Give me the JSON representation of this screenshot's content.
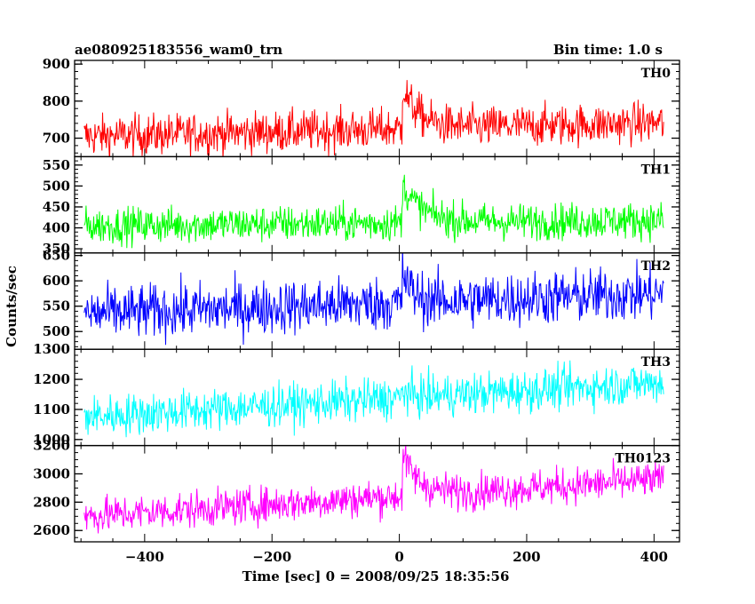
{
  "chart_data": {
    "type": "line",
    "title": "ae080925183556_wam0_trn",
    "bin_time_label": "Bin time: 1.0 s",
    "xlabel": "Time [sec] 0 = 2008/09/25 18:35:56",
    "ylabel": "Counts/sec",
    "xlim": [
      -510,
      440
    ],
    "x_ticks": [
      -400,
      -200,
      0,
      200,
      400
    ],
    "x_minor_step": 50,
    "burst_time": 5,
    "panels": [
      {
        "name": "TH0",
        "color": "#ff0000",
        "ylim": [
          650,
          910
        ],
        "y_ticks": [
          700,
          800,
          900
        ],
        "y_minor_step": 20,
        "x_start": -495,
        "x_end": 415,
        "baseline_start": 705,
        "baseline_end": 742,
        "noise": 28,
        "peak": 895,
        "tail_tau": 25
      },
      {
        "name": "TH1",
        "color": "#00ff00",
        "ylim": [
          340,
          570
        ],
        "y_ticks": [
          350,
          400,
          450,
          500,
          550
        ],
        "y_minor_step": 10,
        "x_start": -495,
        "x_end": 415,
        "baseline_start": 405,
        "baseline_end": 418,
        "noise": 22,
        "peak": 560,
        "tail_tau": 30
      },
      {
        "name": "TH2",
        "color": "#0000ff",
        "ylim": [
          465,
          655
        ],
        "y_ticks": [
          500,
          550,
          600,
          650
        ],
        "y_minor_step": 10,
        "x_start": -495,
        "x_end": 415,
        "baseline_start": 535,
        "baseline_end": 575,
        "noise": 27,
        "peak": 640,
        "tail_tau": 15
      },
      {
        "name": "TH3",
        "color": "#00ffff",
        "ylim": [
          980,
          1300
        ],
        "y_ticks": [
          1000,
          1100,
          1200,
          1300
        ],
        "y_minor_step": 20,
        "x_start": -495,
        "x_end": 415,
        "baseline_start": 1075,
        "baseline_end": 1190,
        "noise": 35,
        "peak": 1130,
        "tail_tau": 10
      },
      {
        "name": "TH0123",
        "color": "#ff00ff",
        "ylim": [
          2520,
          3200
        ],
        "y_ticks": [
          2600,
          2800,
          3000,
          3200
        ],
        "y_minor_step": 50,
        "x_start": -495,
        "x_end": 415,
        "baseline_start": 2700,
        "baseline_end": 2960,
        "noise": 65,
        "peak": 3190,
        "tail_tau": 25
      }
    ]
  }
}
